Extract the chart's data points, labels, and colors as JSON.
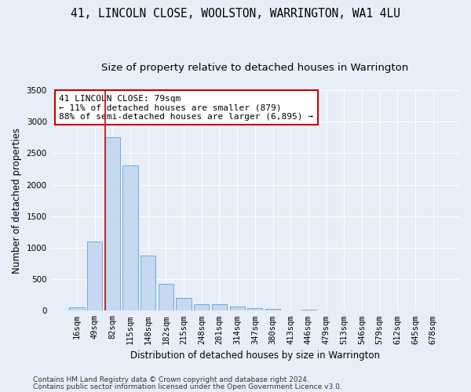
{
  "title_line1": "41, LINCOLN CLOSE, WOOLSTON, WARRINGTON, WA1 4LU",
  "title_line2": "Size of property relative to detached houses in Warrington",
  "xlabel": "Distribution of detached houses by size in Warrington",
  "ylabel": "Number of detached properties",
  "categories": [
    "16sqm",
    "49sqm",
    "82sqm",
    "115sqm",
    "148sqm",
    "182sqm",
    "215sqm",
    "248sqm",
    "281sqm",
    "314sqm",
    "347sqm",
    "380sqm",
    "413sqm",
    "446sqm",
    "479sqm",
    "513sqm",
    "546sqm",
    "579sqm",
    "612sqm",
    "645sqm",
    "678sqm"
  ],
  "values": [
    50,
    1100,
    2750,
    2300,
    880,
    430,
    200,
    105,
    100,
    60,
    35,
    25,
    10,
    20,
    10,
    5,
    5,
    3,
    3,
    2,
    2
  ],
  "bar_color": "#c5d8ef",
  "bar_edge_color": "#6baed6",
  "vline_color": "#cc0000",
  "annotation_line1": "41 LINCOLN CLOSE: 79sqm",
  "annotation_line2": "← 11% of detached houses are smaller (879)",
  "annotation_line3": "88% of semi-detached houses are larger (6,895) →",
  "annotation_box_color": "white",
  "annotation_box_edge": "#cc0000",
  "ylim": [
    0,
    3500
  ],
  "yticks": [
    0,
    500,
    1000,
    1500,
    2000,
    2500,
    3000,
    3500
  ],
  "footer_line1": "Contains HM Land Registry data © Crown copyright and database right 2024.",
  "footer_line2": "Contains public sector information licensed under the Open Government Licence v3.0.",
  "bg_color": "#e8eef7",
  "plot_bg_color": "#e8eef7",
  "title_fontsize": 10.5,
  "subtitle_fontsize": 9.5,
  "axis_label_fontsize": 8.5,
  "tick_fontsize": 7.5,
  "annotation_fontsize": 8,
  "footer_fontsize": 6.5
}
